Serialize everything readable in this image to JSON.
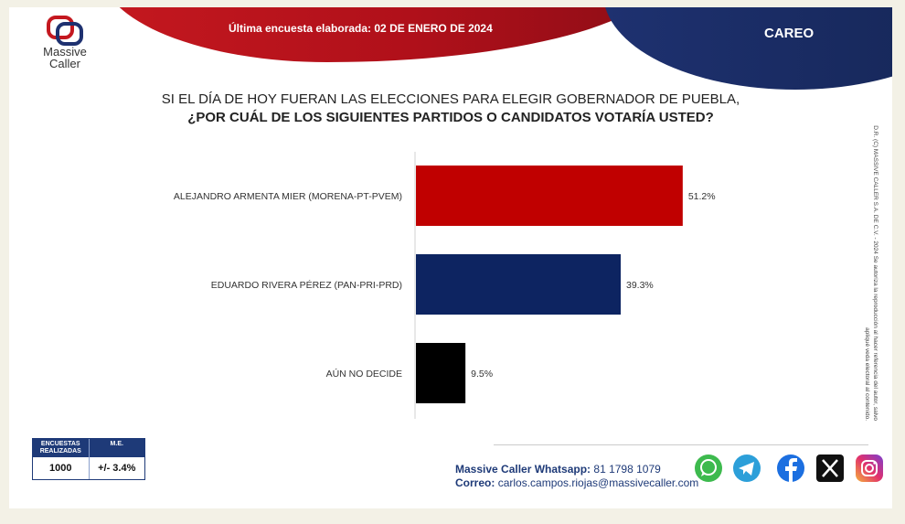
{
  "header": {
    "banner_title": "Última encuesta elaborada: 02 DE ENERO DE 2024",
    "section": "CAREO",
    "logo_text_1": "Massive",
    "logo_text_2": "Caller"
  },
  "question": {
    "line1": "SI EL DÍA DE HOY FUERAN LAS ELECCIONES PARA ELEGIR GOBERNADOR DE PUEBLA,",
    "line2": "¿POR CUÁL DE LOS SIGUIENTES PARTIDOS O CANDIDATOS VOTARÍA USTED?"
  },
  "chart_data": {
    "type": "bar",
    "orientation": "horizontal",
    "categories": [
      "ALEJANDRO ARMENTA MIER (MORENA-PT-PVEM)",
      "EDUARDO RIVERA PÉREZ (PAN-PRI-PRD)",
      "AÚN NO DECIDE"
    ],
    "values": [
      51.2,
      39.3,
      9.5
    ],
    "data_labels": [
      "51.2%",
      "39.3%",
      "9.5%"
    ],
    "colors": [
      "#c00000",
      "#0d2461",
      "#000000"
    ],
    "xlim": [
      0,
      100
    ],
    "grid": false,
    "legend": "none"
  },
  "copyright": "D.R. (C) MASSIVE CALLER S.A. DE C.V. - 2024 Se autoriza la reproducción al hacer referencia del autor, salvo apliqué veda electoral al contenido.",
  "stats": {
    "col1_header": "ENCUESTAS REALIZADAS",
    "col2_header": "M.E.",
    "col1_value": "1000",
    "col2_value": "+/- 3.4%"
  },
  "contact": {
    "whatsapp_label": "Massive Caller Whatsapp:",
    "whatsapp_number": "81 1798 1079",
    "email_label": "Correo:",
    "email": "carlos.campos.riojas@massivecaller.com"
  },
  "social_icons": [
    "whatsapp-icon",
    "telegram-icon",
    "facebook-icon",
    "x-icon",
    "instagram-icon"
  ],
  "colors": {
    "brand_red": "#c4181f",
    "brand_blue": "#1e3170"
  }
}
